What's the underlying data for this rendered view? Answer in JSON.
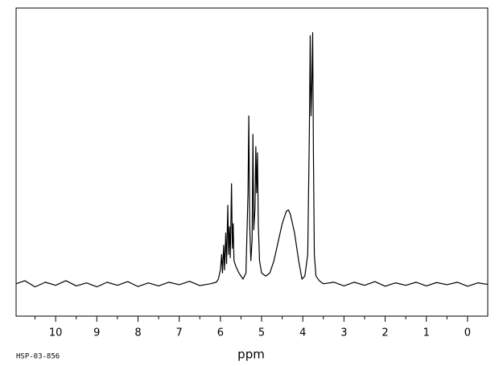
{
  "chart_data": {
    "type": "line",
    "x_label": "ppm",
    "caption": "HSP-03-856",
    "color": "#000000",
    "x": [
      10.96,
      10.75,
      10.5,
      10.25,
      10,
      9.75,
      9.5,
      9.25,
      9,
      8.75,
      8.5,
      8.25,
      8,
      7.75,
      7.5,
      7.25,
      7,
      6.75,
      6.5,
      6.25,
      6.1,
      6.05,
      6.0,
      5.97,
      5.95,
      5.92,
      5.9,
      5.87,
      5.85,
      5.82,
      5.8,
      5.78,
      5.76,
      5.73,
      5.71,
      5.69,
      5.67,
      5.62,
      5.55,
      5.45,
      5.38,
      5.33,
      5.31,
      5.29,
      5.26,
      5.23,
      5.21,
      5.19,
      5.16,
      5.14,
      5.12,
      5.1,
      5.08,
      5.05,
      5.0,
      4.9,
      4.8,
      4.7,
      4.6,
      4.5,
      4.4,
      4.35,
      4.3,
      4.2,
      4.1,
      4.02,
      3.95,
      3.88,
      3.84,
      3.82,
      3.8,
      3.78,
      3.76,
      3.74,
      3.72,
      3.68,
      3.6,
      3.5,
      3.25,
      3,
      2.75,
      2.5,
      2.25,
      2,
      1.75,
      1.5,
      1.25,
      1,
      0.75,
      0.5,
      0.25,
      0,
      -0.25,
      -0.49
    ],
    "values": [
      10.5,
      11.5,
      9.5,
      11,
      10,
      11.5,
      9.8,
      10.8,
      9.5,
      11,
      10,
      11.2,
      9.6,
      10.8,
      9.8,
      11,
      10.2,
      11.3,
      9.9,
      10.5,
      11,
      12,
      15,
      20,
      14,
      23,
      15,
      27,
      17,
      36,
      20,
      29,
      19,
      43,
      22,
      30,
      18,
      16,
      14,
      12,
      14,
      40,
      65,
      30,
      18,
      25,
      59,
      28,
      35,
      55,
      40,
      53,
      30,
      18,
      14,
      13,
      14,
      18,
      24,
      30,
      34,
      34.5,
      33,
      27,
      18,
      12,
      13,
      20,
      60,
      91,
      65,
      75,
      92,
      50,
      20,
      13,
      11.5,
      10.5,
      11,
      9.8,
      11,
      10,
      11.2,
      9.7,
      10.8,
      10,
      11,
      9.8,
      10.9,
      10.2,
      11,
      9.7,
      10.8,
      10.3
    ],
    "xlim": [
      10.96,
      -0.49
    ],
    "ylim": [
      0,
      100
    ],
    "xticks": [
      10,
      9,
      8,
      7,
      6,
      5,
      4,
      3,
      2,
      1,
      0
    ],
    "minor_xticks": [
      10.5,
      9.5,
      8.5,
      7.5,
      6.5,
      5.5,
      4.5,
      3.5,
      2.5,
      1.5,
      0.5
    ]
  }
}
